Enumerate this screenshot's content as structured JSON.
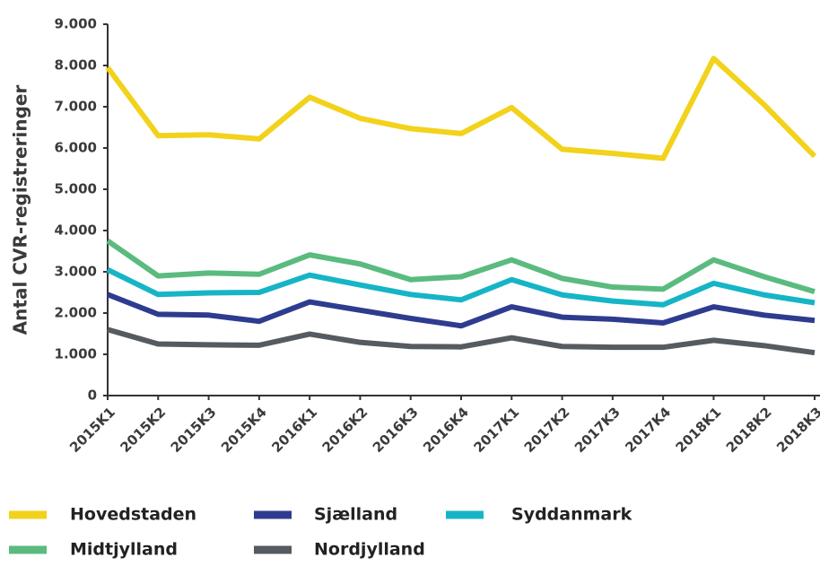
{
  "chart_data": {
    "type": "line",
    "y_label": "Antal CVR-registreringer",
    "categories": [
      "2015K1",
      "2015K2",
      "2015K3",
      "2015K4",
      "2016K1",
      "2016K2",
      "2016K3",
      "2016K4",
      "2017K1",
      "2017K2",
      "2017K3",
      "2017K4",
      "2018K1",
      "2018K2",
      "2018K3"
    ],
    "series": [
      {
        "name": "Hovedstaden",
        "color": "#f2d21b",
        "values": [
          7950,
          6300,
          6320,
          6220,
          7230,
          6720,
          6470,
          6350,
          6980,
          5970,
          5870,
          5750,
          8170,
          7050,
          5800
        ]
      },
      {
        "name": "Sjælland",
        "color": "#2e3c8f",
        "values": [
          2450,
          1970,
          1950,
          1800,
          2270,
          2070,
          1870,
          1690,
          2150,
          1900,
          1850,
          1760,
          2150,
          1950,
          1820
        ]
      },
      {
        "name": "Syddanmark",
        "color": "#16b5c6",
        "values": [
          3050,
          2450,
          2490,
          2500,
          2920,
          2680,
          2450,
          2320,
          2810,
          2440,
          2290,
          2200,
          2720,
          2440,
          2250
        ]
      },
      {
        "name": "Midtjylland",
        "color": "#5bbb7f",
        "values": [
          3750,
          2900,
          2970,
          2940,
          3410,
          3190,
          2810,
          2880,
          3290,
          2840,
          2630,
          2580,
          3290,
          2880,
          2520
        ]
      },
      {
        "name": "Nordjylland",
        "color": "#555b60",
        "values": [
          1600,
          1250,
          1230,
          1220,
          1490,
          1290,
          1190,
          1180,
          1400,
          1190,
          1170,
          1170,
          1340,
          1210,
          1040
        ]
      }
    ],
    "ylim": [
      0,
      9000
    ],
    "yticks": [
      0,
      {
        "value": 1000,
        "label": "1.000"
      },
      {
        "value": 2000,
        "label": "2.000"
      },
      {
        "value": 3000,
        "label": "3.000"
      },
      {
        "value": 4000,
        "label": "4.000"
      },
      {
        "value": 5000,
        "label": "5.000"
      },
      {
        "value": 6000,
        "label": "6.000"
      },
      {
        "value": 7000,
        "label": "7.000"
      },
      {
        "value": 8000,
        "label": "8.000"
      },
      {
        "value": 9000,
        "label": "9.000"
      }
    ],
    "grid": false,
    "legend": "bottom"
  }
}
